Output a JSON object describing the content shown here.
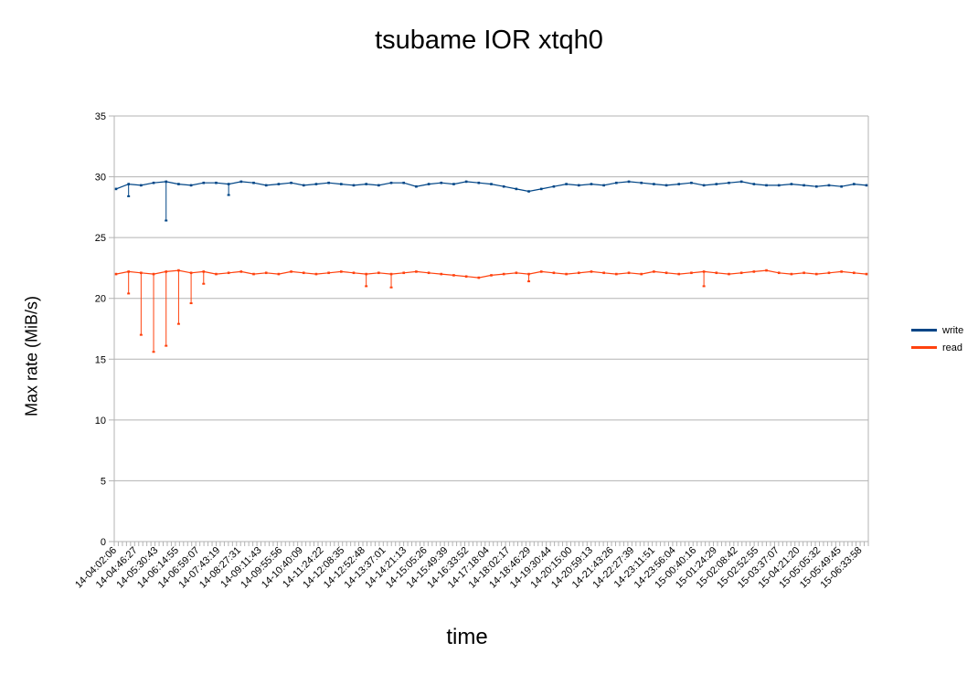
{
  "chart_data": {
    "type": "line",
    "title": "tsubame IOR xtqh0",
    "xlabel": "time",
    "ylabel": "Max rate (MiB/s)",
    "ylim": [
      0,
      35
    ],
    "yticks": [
      0,
      5,
      10,
      15,
      20,
      25,
      30,
      35
    ],
    "grid": true,
    "legend_position": "right",
    "x_tick_labels": [
      "14-04:02:06",
      "14-04:46:27",
      "14-05:30:43",
      "14-06:14:55",
      "14-06:59:07",
      "14-07:43:19",
      "14-08:27:31",
      "14-09:11:43",
      "14-09:55:56",
      "14-10:40:09",
      "14-11:24:22",
      "14-12:08:35",
      "14-12:52:48",
      "14-13:37:01",
      "14-14:21:13",
      "14-15:05:26",
      "14-15:49:39",
      "14-16:33:52",
      "14-17:18:04",
      "14-18:02:17",
      "14-18:46:29",
      "14-19:30:44",
      "14-20:15:00",
      "14-20:59:13",
      "14-21:43:26",
      "14-22:27:39",
      "14-23:11:51",
      "14-23:56:04",
      "15-00:40:16",
      "15-01:24:29",
      "15-02:08:42",
      "15-02:52:55",
      "15-03:37:07",
      "15-04:21:20",
      "15-05:05:32",
      "15-05:49:45",
      "15-06:33:58"
    ],
    "series": [
      {
        "name": "write",
        "color": "#004586",
        "values": [
          29.0,
          29.4,
          29.3,
          29.5,
          29.6,
          29.4,
          29.3,
          29.5,
          29.5,
          29.4,
          29.6,
          29.5,
          29.3,
          29.4,
          29.5,
          29.3,
          29.4,
          29.5,
          29.4,
          29.3,
          29.4,
          29.3,
          29.5,
          29.5,
          29.2,
          29.4,
          29.5,
          29.4,
          29.6,
          29.5,
          29.4,
          29.2,
          29.0,
          28.8,
          29.0,
          29.2,
          29.4,
          29.3,
          29.4,
          29.3,
          29.5,
          29.6,
          29.5,
          29.4,
          29.3,
          29.4,
          29.5,
          29.3,
          29.4,
          29.5,
          29.6,
          29.4,
          29.3,
          29.3,
          29.4,
          29.3,
          29.2,
          29.3,
          29.2,
          29.4,
          29.3
        ],
        "dips": [
          {
            "index": 1,
            "value": 28.4
          },
          {
            "index": 4,
            "value": 26.4
          },
          {
            "index": 9,
            "value": 28.5
          }
        ]
      },
      {
        "name": "read",
        "color": "#ff420e",
        "values": [
          22.0,
          22.2,
          22.1,
          22.0,
          22.2,
          22.3,
          22.1,
          22.2,
          22.0,
          22.1,
          22.2,
          22.0,
          22.1,
          22.0,
          22.2,
          22.1,
          22.0,
          22.1,
          22.2,
          22.1,
          22.0,
          22.1,
          22.0,
          22.1,
          22.2,
          22.1,
          22.0,
          21.9,
          21.8,
          21.7,
          21.9,
          22.0,
          22.1,
          22.0,
          22.2,
          22.1,
          22.0,
          22.1,
          22.2,
          22.1,
          22.0,
          22.1,
          22.0,
          22.2,
          22.1,
          22.0,
          22.1,
          22.2,
          22.1,
          22.0,
          22.1,
          22.2,
          22.3,
          22.1,
          22.0,
          22.1,
          22.0,
          22.1,
          22.2,
          22.1,
          22.0
        ],
        "dips": [
          {
            "index": 1,
            "value": 20.4
          },
          {
            "index": 2,
            "value": 17.0
          },
          {
            "index": 3,
            "value": 15.6
          },
          {
            "index": 4,
            "value": 16.1
          },
          {
            "index": 5,
            "value": 17.9
          },
          {
            "index": 6,
            "value": 19.6
          },
          {
            "index": 7,
            "value": 21.2
          },
          {
            "index": 20,
            "value": 21.0
          },
          {
            "index": 22,
            "value": 20.9
          },
          {
            "index": 33,
            "value": 21.4
          },
          {
            "index": 47,
            "value": 21.0
          }
        ]
      }
    ]
  }
}
